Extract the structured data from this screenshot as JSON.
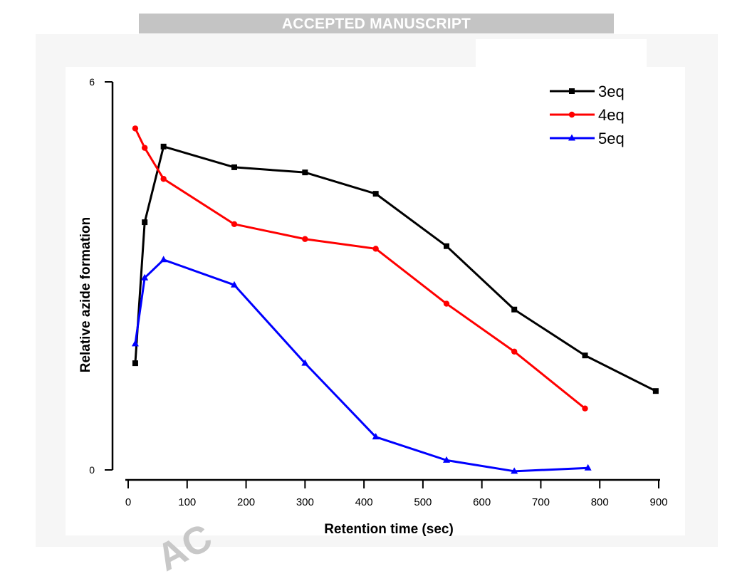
{
  "banner": {
    "text": "ACCEPTED MANUSCRIPT"
  },
  "watermark": {
    "text": "AC"
  },
  "chart_data": {
    "type": "line",
    "xlabel": "Retention time (sec)",
    "ylabel": "Relative azide formation",
    "xlim": [
      0,
      900
    ],
    "ylim": [
      0,
      6
    ],
    "xticks": [
      0,
      100,
      200,
      300,
      400,
      500,
      600,
      700,
      800,
      900
    ],
    "yticks": [
      0,
      6
    ],
    "grid": false,
    "legend": "top-right",
    "series": [
      {
        "name": "3eq",
        "color": "#000000",
        "marker": "square",
        "x": [
          12,
          28,
          60,
          180,
          300,
          420,
          540,
          655,
          775,
          895
        ],
        "y": [
          1.65,
          3.83,
          5.0,
          4.68,
          4.6,
          4.27,
          3.46,
          2.48,
          1.77,
          1.22
        ]
      },
      {
        "name": "4eq",
        "color": "#ff0000",
        "marker": "circle",
        "x": [
          12,
          28,
          60,
          180,
          300,
          420,
          540,
          655,
          775
        ],
        "y": [
          5.28,
          4.98,
          4.5,
          3.8,
          3.57,
          3.42,
          2.57,
          1.83,
          0.95
        ]
      },
      {
        "name": "5eq",
        "color": "#0000ff",
        "marker": "triangle",
        "x": [
          12,
          28,
          60,
          180,
          300,
          420,
          540,
          655,
          780
        ],
        "y": [
          1.95,
          2.97,
          3.25,
          2.86,
          1.65,
          0.51,
          0.15,
          -0.02,
          0.03
        ]
      }
    ]
  }
}
